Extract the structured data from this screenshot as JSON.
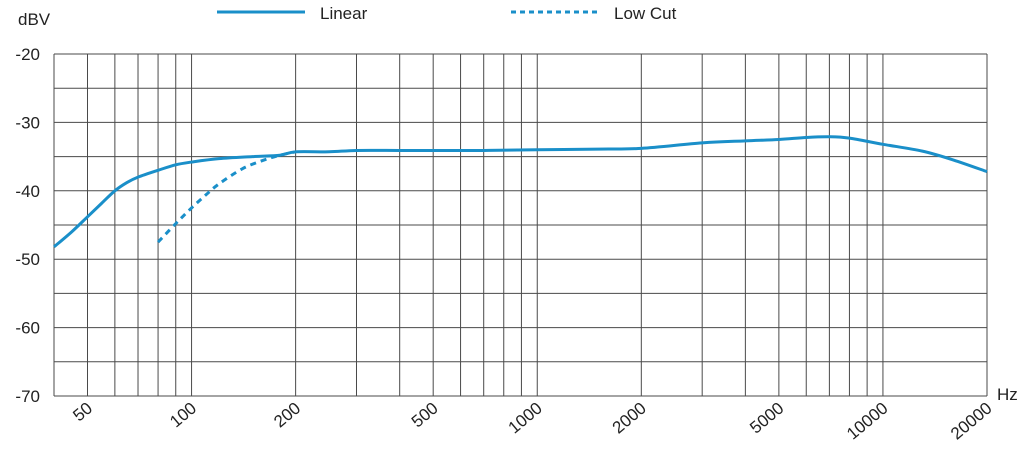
{
  "chart_data": {
    "type": "line",
    "x_scale": "log",
    "y_unit": "dBV",
    "x_unit": "Hz",
    "xlim": [
      40,
      20000
    ],
    "ylim": [
      -70,
      -20
    ],
    "y_ticks": [
      -20,
      -30,
      -40,
      -50,
      -60,
      -70
    ],
    "y_tick_labels": [
      "-20",
      "-30",
      "-40",
      "-50",
      "-60",
      "-70"
    ],
    "x_ticks": [
      50,
      100,
      200,
      500,
      1000,
      2000,
      5000,
      10000,
      20000
    ],
    "x_tick_labels": [
      "50",
      "100",
      "200",
      "500",
      "1000",
      "2000",
      "5000",
      "10000",
      "20000"
    ],
    "x_grid": [
      40,
      50,
      60,
      70,
      80,
      90,
      100,
      200,
      300,
      400,
      500,
      600,
      700,
      800,
      900,
      1000,
      2000,
      3000,
      4000,
      5000,
      6000,
      7000,
      8000,
      9000,
      10000,
      20000
    ],
    "y_grid": [
      -20,
      -25,
      -30,
      -35,
      -40,
      -45,
      -50,
      -55,
      -60,
      -65,
      -70
    ],
    "grid": true,
    "legend_position": "top",
    "series": [
      {
        "name": "Linear",
        "style": "solid",
        "color": "#1a8fc9",
        "x": [
          40,
          45,
          50,
          55,
          60,
          65,
          70,
          80,
          90,
          100,
          120,
          150,
          180,
          200,
          250,
          300,
          400,
          500,
          700,
          1000,
          1500,
          2000,
          3000,
          4000,
          5000,
          6000,
          7000,
          8000,
          10000,
          13000,
          16000,
          20000
        ],
        "y": [
          -48.2,
          -46.0,
          -43.8,
          -41.8,
          -40.0,
          -38.8,
          -38.0,
          -37.0,
          -36.2,
          -35.8,
          -35.3,
          -35.0,
          -34.8,
          -34.3,
          -34.3,
          -34.1,
          -34.1,
          -34.1,
          -34.1,
          -34.0,
          -33.9,
          -33.8,
          -33.0,
          -32.7,
          -32.5,
          -32.2,
          -32.1,
          -32.3,
          -33.2,
          -34.2,
          -35.5,
          -37.2
        ]
      },
      {
        "name": "Low Cut",
        "style": "dashed",
        "color": "#1a8fc9",
        "x": [
          80,
          90,
          100,
          110,
          120,
          140,
          160,
          180,
          200
        ],
        "y": [
          -47.5,
          -44.8,
          -42.5,
          -40.6,
          -39.0,
          -36.8,
          -35.6,
          -34.8,
          -34.3
        ]
      }
    ]
  }
}
